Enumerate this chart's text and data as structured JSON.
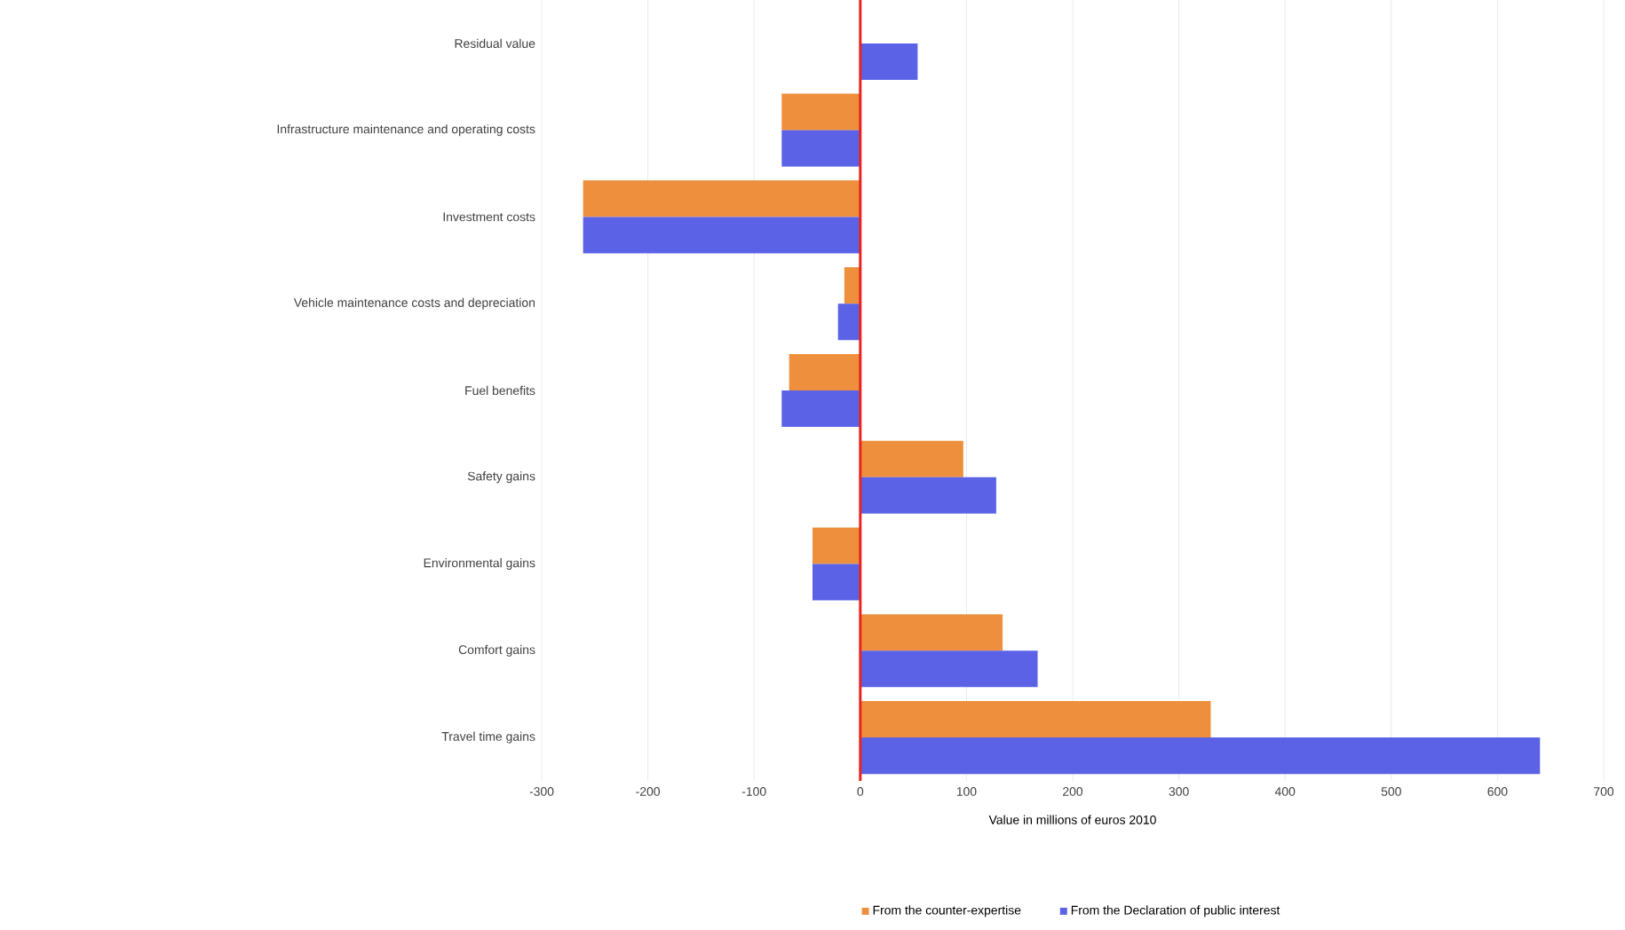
{
  "chart_data": {
    "type": "bar",
    "orientation": "horizontal",
    "xlabel": "Value in millions of euros 2010",
    "categories": [
      "Residual value",
      "Infrastructure maintenance and operating costs",
      "Investment costs",
      "Vehicle maintenance costs and depreciation",
      "Fuel benefits",
      "Safety gains",
      "Environmental gains",
      "Comfort gains",
      "Travel time gains"
    ],
    "series": [
      {
        "name": "From the counter-expertise",
        "color": "#ed8f3c",
        "values": [
          null,
          -74,
          -261,
          -15,
          -67,
          97,
          -45,
          134,
          330
        ]
      },
      {
        "name": "From the Declaration of public interest",
        "color": "#5b62e6",
        "values": [
          54,
          -74,
          -261,
          -21,
          -74,
          128,
          -45,
          167,
          640
        ]
      }
    ],
    "xlim": [
      -300,
      700
    ],
    "xticks": [
      -300,
      -200,
      -100,
      0,
      100,
      200,
      300,
      400,
      500,
      600,
      700
    ],
    "ref_lines": [
      {
        "axis": "x",
        "value": 0,
        "color": "#e8231f"
      }
    ],
    "grid": "x",
    "legend": "bottom"
  }
}
